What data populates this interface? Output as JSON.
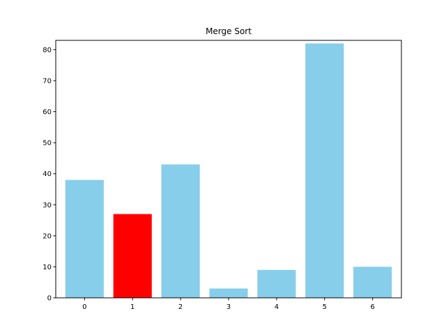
{
  "chart_data": {
    "type": "bar",
    "title": "Merge Sort",
    "xlabel": "",
    "ylabel": "",
    "categories": [
      "0",
      "1",
      "2",
      "3",
      "4",
      "5",
      "6"
    ],
    "values": [
      38,
      27,
      43,
      3,
      9,
      82,
      10
    ],
    "bar_colors": [
      "#87ceeb",
      "#ff0000",
      "#87ceeb",
      "#87ceeb",
      "#87ceeb",
      "#87ceeb",
      "#87ceeb"
    ],
    "highlight_color": "#ff0000",
    "default_color": "#87ceeb",
    "ylim": [
      0,
      83
    ],
    "yticks": [
      0,
      10,
      20,
      30,
      40,
      50,
      60,
      70,
      80
    ],
    "grid": false,
    "legend": "none"
  }
}
